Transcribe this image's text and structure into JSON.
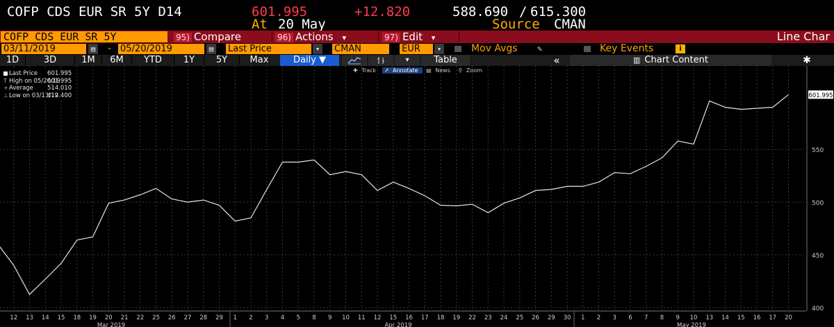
{
  "header": {
    "ticker": "COFP CDS EUR SR 5Y D14",
    "last": "601.995",
    "change": "+12.820",
    "low_range": "588.690",
    "slash": "/",
    "high_range": "615.300",
    "at_label": "At",
    "at_date": "20 May",
    "source_label": "Source",
    "source_value": "CMAN"
  },
  "toolbar": {
    "security": "COFP CDS EUR SR 5Y",
    "compare_num": "95)",
    "compare_label": "Compare",
    "actions_num": "96)",
    "actions_label": "Actions",
    "edit_num": "97)",
    "edit_label": "Edit",
    "chevron": "▾",
    "chart_type": "Line Char"
  },
  "fields": {
    "start_date": "03/11/2019",
    "dash": "-",
    "end_date": "05/20/2019",
    "price_field": "Last Price",
    "source": "CMAN",
    "currency": "EUR",
    "mov_avgs": "Mov Avgs",
    "key_events": "Key Events"
  },
  "ranges": {
    "items": [
      "1D",
      "3D",
      "1M",
      "6M",
      "YTD",
      "1Y",
      "5Y",
      "Max"
    ],
    "daily": "Daily ▼",
    "table": "Table",
    "collapse": "«",
    "chart_content": "Chart Content",
    "settings": "✱"
  },
  "tools": {
    "track": "Track",
    "annotate": "Annotate",
    "news": "News",
    "zoom": "Zoom"
  },
  "legend": {
    "rows": [
      {
        "label": "Last Price",
        "value": "601.995"
      },
      {
        "label": "High on 05/20/19",
        "value": "601.995"
      },
      {
        "label": "Average",
        "value": "514.010"
      },
      {
        "label": "Low on 03/13/19",
        "value": "412.400"
      }
    ]
  },
  "colors": {
    "line": "#e6e6e6",
    "grid": "#3c3c3c",
    "header_amber": "#ffa200",
    "header_red": "#ff3b4e",
    "toolbar_red": "#8b0d1d",
    "field_orange": "#ff9a00",
    "active_blue": "#1a5ccf"
  },
  "chart_data": {
    "type": "line",
    "title": "",
    "xlabel": "",
    "ylabel": "",
    "ylim": [
      398,
      618
    ],
    "yticks": [
      400,
      450,
      500,
      550
    ],
    "last_value_label": "601.995",
    "x": [
      "11",
      "12",
      "13",
      "14",
      "15",
      "18",
      "19",
      "20",
      "21",
      "22",
      "25",
      "26",
      "27",
      "28",
      "29",
      "1",
      "2",
      "3",
      "4",
      "5",
      "8",
      "9",
      "10",
      "11",
      "12",
      "15",
      "16",
      "17",
      "18",
      "19",
      "22",
      "23",
      "24",
      "25",
      "26",
      "29",
      "30",
      "1",
      "2",
      "3",
      "6",
      "7",
      "8",
      "9",
      "10",
      "13",
      "14",
      "15",
      "16",
      "17",
      "20"
    ],
    "x_display": [
      "12",
      "13",
      "14",
      "15",
      "18",
      "19",
      "20",
      "21",
      "22",
      "25",
      "26",
      "27",
      "28",
      "29",
      "1",
      "2",
      "3",
      "4",
      "5",
      "8",
      "9",
      "10",
      "11",
      "12",
      "15",
      "16",
      "17",
      "18",
      "19",
      "22",
      "23",
      "24",
      "25",
      "26",
      "29",
      "30",
      "1",
      "2",
      "3",
      "6",
      "7",
      "8",
      "9",
      "10",
      "13",
      "14",
      "15",
      "16",
      "17",
      "20"
    ],
    "months": [
      {
        "label": "Mar 2019",
        "center_after": "20"
      },
      {
        "label": "Apr 2019",
        "center_after": "11"
      },
      {
        "label": "May 2019",
        "center_after": "9"
      }
    ],
    "series": [
      {
        "values": [
          460.0,
          440.0,
          412.4,
          427.0,
          442.0,
          464.0,
          467.0,
          499.0,
          502.0,
          507.0,
          513.0,
          503.0,
          500.0,
          502.0,
          497.0,
          482.0,
          485.0,
          512.0,
          538.0,
          538.0,
          540.0,
          526.0,
          529.0,
          526.0,
          511.0,
          519.0,
          513.0,
          506.0,
          497.0,
          496.5,
          498.0,
          490.0,
          499.0,
          504.0,
          511.0,
          512.0,
          515.0,
          515.0,
          519.0,
          528.0,
          527.0,
          534.0,
          542.0,
          558.0,
          555.0,
          596.0,
          590.0,
          588.0,
          589.0,
          590.0,
          601.995
        ]
      }
    ]
  }
}
